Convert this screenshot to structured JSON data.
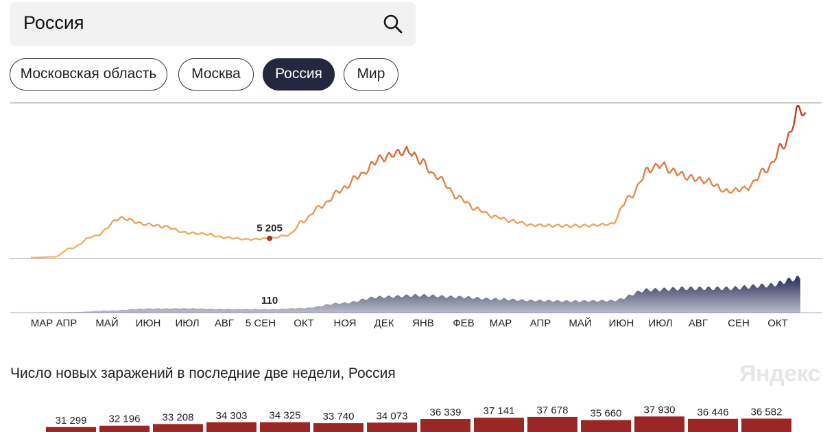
{
  "search": {
    "value": "Россия"
  },
  "regions": [
    {
      "label": "Московская область",
      "active": false
    },
    {
      "label": "Москва",
      "active": false
    },
    {
      "label": "Россия",
      "active": true
    },
    {
      "label": "Мир",
      "active": false
    }
  ],
  "colors": {
    "line_low": "#efbe6a",
    "line_mid": "#e0783c",
    "line_high": "#b22a1e",
    "deaths_fill": "#3b3f66",
    "bar": "#9b2626",
    "active_chip": "#25273f"
  },
  "chart_data": [
    {
      "type": "line",
      "name": "cases",
      "title": "",
      "months": [
        "МАР",
        "АПР",
        "МАЙ",
        "ИЮН",
        "ИЮЛ",
        "АВГ",
        "5 СЕН",
        "ОКТ",
        "НОЯ",
        "ДЕК",
        "ЯНВ",
        "ФЕВ",
        "МАР",
        "АПР",
        "МАЙ",
        "ИЮН",
        "ИЮЛ",
        "АВГ",
        "СЕН",
        "ОКТ"
      ],
      "x": [
        "2020-03-01",
        "2020-03-20",
        "2020-04-01",
        "2020-04-20",
        "2020-05-11",
        "2020-06-01",
        "2020-06-15",
        "2020-07-01",
        "2020-07-15",
        "2020-08-01",
        "2020-08-20",
        "2020-09-05",
        "2020-09-20",
        "2020-10-01",
        "2020-10-15",
        "2020-11-01",
        "2020-11-15",
        "2020-12-01",
        "2020-12-15",
        "2020-12-24",
        "2021-01-01",
        "2021-01-15",
        "2021-02-01",
        "2021-02-15",
        "2021-03-01",
        "2021-03-15",
        "2021-04-01",
        "2021-04-15",
        "2021-05-01",
        "2021-05-15",
        "2021-06-01",
        "2021-06-15",
        "2021-07-01",
        "2021-07-10",
        "2021-07-20",
        "2021-08-01",
        "2021-08-15",
        "2021-09-01",
        "2021-09-15",
        "2021-10-01",
        "2021-10-15",
        "2021-10-28",
        "2021-11-01"
      ],
      "y": [
        50,
        300,
        2500,
        5800,
        10600,
        8900,
        8300,
        6700,
        6400,
        5400,
        4900,
        5205,
        6100,
        9700,
        13700,
        18200,
        22000,
        26500,
        28000,
        28500,
        26000,
        21500,
        16000,
        13000,
        11000,
        9800,
        8700,
        8600,
        8500,
        8600,
        9000,
        16000,
        23500,
        24800,
        23000,
        21500,
        20500,
        17700,
        18500,
        23500,
        30000,
        40000,
        38000
      ],
      "callout": {
        "x": "2020-09-05",
        "value": "5 205"
      },
      "ylim": [
        0,
        41000
      ]
    },
    {
      "type": "area",
      "name": "deaths",
      "x": [
        "2020-03-01",
        "2020-04-01",
        "2020-05-01",
        "2020-06-01",
        "2020-07-01",
        "2020-08-01",
        "2020-09-05",
        "2020-10-01",
        "2020-11-01",
        "2020-12-01",
        "2021-01-01",
        "2021-02-01",
        "2021-03-01",
        "2021-04-01",
        "2021-05-01",
        "2021-06-01",
        "2021-07-01",
        "2021-08-01",
        "2021-09-01",
        "2021-10-01",
        "2021-10-28"
      ],
      "y": [
        0,
        15,
        70,
        130,
        140,
        115,
        110,
        150,
        310,
        510,
        560,
        510,
        445,
        395,
        375,
        390,
        740,
        790,
        790,
        880,
        1120
      ],
      "callout": {
        "x": "2020-09-05",
        "value": "110"
      },
      "ylim": [
        0,
        1200
      ]
    },
    {
      "type": "bar",
      "title": "Число новых заражений в последние две недели, Россия",
      "values": [
        31299,
        32196,
        33208,
        34303,
        34325,
        33740,
        34073,
        36339,
        37141,
        37678,
        35660,
        37930,
        36446,
        36582
      ],
      "labels": [
        "31 299",
        "32 196",
        "33 208",
        "34 303",
        "34 325",
        "33 740",
        "34 073",
        "36 339",
        "37 141",
        "37 678",
        "35 660",
        "37 930",
        "36 446",
        "36 582"
      ]
    }
  ],
  "watermark": "Яндекс"
}
